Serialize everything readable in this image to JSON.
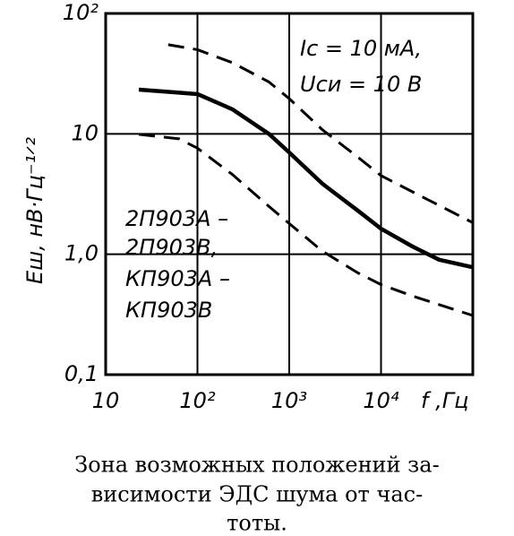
{
  "chart_data": {
    "type": "line",
    "x_label": "f ,Гц",
    "y_label": "Eш, нВ·Гц⁻¹ᐟ²",
    "xscale": "log",
    "yscale": "log",
    "xlim": [
      10,
      100000
    ],
    "ylim": [
      0.1,
      100
    ],
    "xticks": [
      10,
      {
        "value": 100,
        "label": "10²"
      },
      {
        "value": 1000,
        "label": "10³"
      },
      {
        "value": 10000,
        "label": "10⁴"
      }
    ],
    "yticks": [
      {
        "value": 0.1,
        "label": "0,1"
      },
      {
        "value": 1,
        "label": "1,0"
      },
      10,
      {
        "value": 100,
        "label": "10²"
      }
    ],
    "grid": true,
    "series": [
      {
        "color": "#000000",
        "style": "solid",
        "x": [
          23,
          63,
          100,
          240,
          600,
          1000,
          2300,
          5600,
          10000,
          22000,
          43000,
          100000
        ],
        "values": [
          23.3,
          22,
          21.4,
          16,
          10,
          7,
          3.85,
          2.3,
          1.63,
          1.16,
          0.9,
          0.78
        ]
      },
      {
        "color": "#000000",
        "style": "dashed",
        "x": [
          48,
          100,
          240,
          600,
          1000,
          2300,
          5600,
          10000,
          22000,
          100000
        ],
        "values": [
          55,
          50,
          39,
          27,
          19.6,
          10.8,
          6.4,
          4.5,
          3.3,
          1.83
        ]
      },
      {
        "color": "#000000",
        "style": "dashed",
        "x": [
          23,
          63,
          100,
          240,
          600,
          1000,
          2300,
          5600,
          10000,
          22000,
          100000
        ],
        "values": [
          9.9,
          9.1,
          7.6,
          4.6,
          2.5,
          1.8,
          1.06,
          0.7,
          0.56,
          0.45,
          0.31
        ]
      }
    ],
    "annotations": [
      "Iс = 10 мА,",
      "Uси = 10 В",
      "2П903А –",
      "2П903В,",
      "КП903А –",
      "КП903В"
    ],
    "caption": [
      "Зона возможных положений за-",
      "висимости ЭДС шума от час-",
      "тоты."
    ]
  }
}
